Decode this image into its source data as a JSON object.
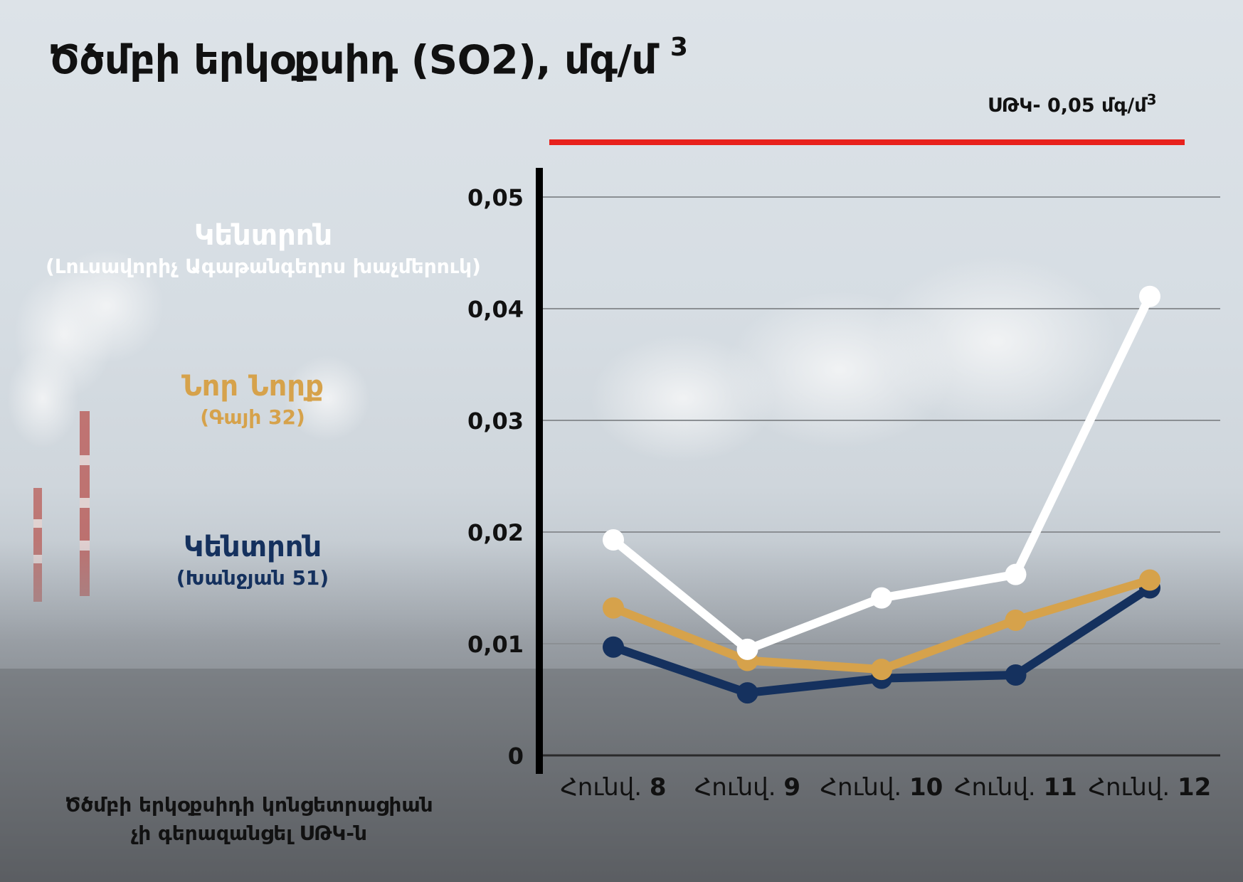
{
  "title": {
    "text": "Ծծմբի երկօքսիդ (SO2), մգ/մ",
    "sup": "3"
  },
  "limit": {
    "label": "ՍԹԿ- 0,05 մգ/մ",
    "sup": "3",
    "value": 0.05,
    "color": "#e8211d"
  },
  "legend": [
    {
      "name": "Կենտրոն",
      "sub": "(Լուսավորիչ Ագաթանգեղոս խաչմերուկ)",
      "color": "#ffffff"
    },
    {
      "name": "Նոր Նորք",
      "sub": "(Գայի 32)",
      "color": "#d6a24b"
    },
    {
      "name": "Կենտրոն",
      "sub": "(Խանջյան 51)",
      "color": "#15315e"
    }
  ],
  "footnote": {
    "line1": "Ծծմբի երկօքսիդի կոնցետրացիան",
    "line2": "չի գերազանցել ՍԹԿ-ն"
  },
  "chart_data": {
    "type": "line",
    "categories": [
      {
        "prefix": "Հունվ. ",
        "num": "8"
      },
      {
        "prefix": "Հունվ. ",
        "num": "9"
      },
      {
        "prefix": "Հունվ. ",
        "num": "10"
      },
      {
        "prefix": "Հունվ. ",
        "num": "11"
      },
      {
        "prefix": "Հունվ. ",
        "num": "12"
      }
    ],
    "yticks": [
      "0",
      "0,01",
      "0,02",
      "0,03",
      "0,04",
      "0,05"
    ],
    "ylim": [
      0,
      0.05
    ],
    "grid": true,
    "series": [
      {
        "values": [
          0.0193,
          0.0095,
          0.0141,
          0.0162,
          0.0411
        ],
        "color": "#ffffff"
      },
      {
        "values": [
          0.0132,
          0.0085,
          0.0077,
          0.0121,
          0.0157
        ],
        "color": "#d6a24b"
      },
      {
        "values": [
          0.0097,
          0.0056,
          0.0069,
          0.0072,
          0.015
        ],
        "color": "#15315e"
      }
    ]
  }
}
